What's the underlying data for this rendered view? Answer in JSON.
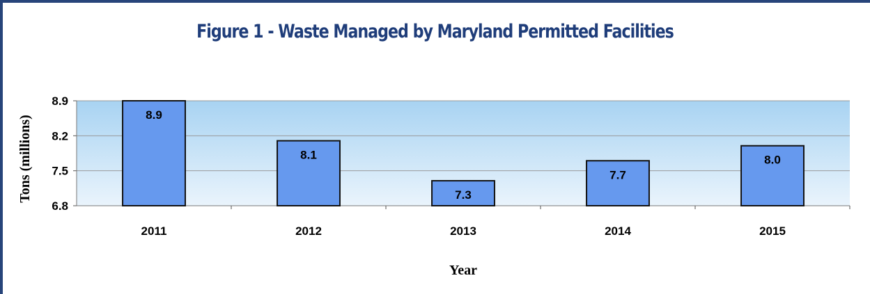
{
  "chart_data": {
    "type": "bar",
    "title": "Figure 1 - Waste Managed by Maryland Permitted Facilities",
    "xlabel": "Year",
    "ylabel": "Tons (millions)",
    "categories": [
      "2011",
      "2012",
      "2013",
      "2014",
      "2015"
    ],
    "values": [
      8.9,
      8.1,
      7.3,
      7.7,
      8.0
    ],
    "value_labels": [
      "8.9",
      "8.1",
      "7.3",
      "7.7",
      "8.0"
    ],
    "ylim": [
      6.8,
      8.9
    ],
    "yticks": [
      6.8,
      7.5,
      8.2,
      8.9
    ],
    "ytick_labels": [
      "6.8",
      "7.5",
      "8.2",
      "8.9"
    ],
    "grid": true,
    "legend": "none",
    "colors": {
      "bar": "#6699ee",
      "bar_edge": "#111111",
      "plot_bg_top": "#a8d3f2",
      "plot_bg_bottom": "#eaf4fc",
      "title": "#1f3d7a",
      "frame": "#27447a"
    }
  }
}
